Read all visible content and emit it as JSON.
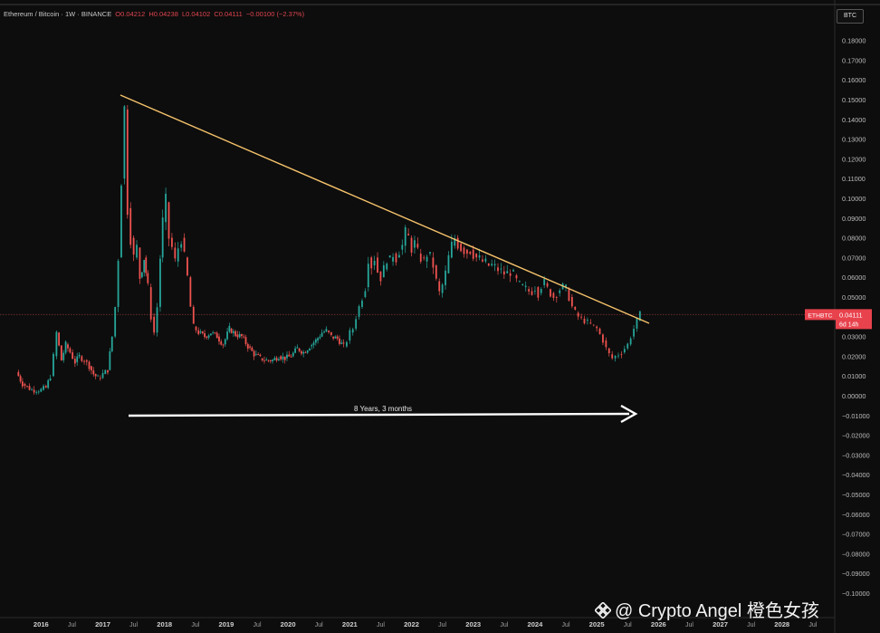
{
  "header": {
    "symbol_line": "Ethereum / Bitcoin · 1W · BINANCE",
    "o": "O0.04212",
    "h": "H0.04238",
    "l": "L0.04102",
    "c": "C0.04111",
    "change": "−0.00100 (−2.37%)"
  },
  "currency_button": "BTC",
  "price_tag": {
    "symbol": "ETHBTC",
    "price": "0.04111",
    "countdown": "6d 14h"
  },
  "annotation": "8 Years, 3 months",
  "watermark": "@ Crypto Angel 橙色女孩",
  "colors": {
    "background": "#0d0d0d",
    "up": "#26a69a",
    "down": "#ef5350",
    "trendline": "#f5c26b",
    "tag": "#e8424d"
  },
  "chart_data": {
    "type": "candlestick",
    "title": "Ethereum / Bitcoin · 1W · BINANCE",
    "y_ticks": [
      "0.18000",
      "0.17000",
      "0.16000",
      "0.15000",
      "0.14000",
      "0.13000",
      "0.12000",
      "0.11000",
      "0.10000",
      "0.09000",
      "0.08000",
      "0.07000",
      "0.06000",
      "0.05000",
      "0.04000",
      "0.03000",
      "0.02000",
      "0.01000",
      "0.00000",
      "−0.01000",
      "−0.02000",
      "−0.03000",
      "−0.04000",
      "−0.05000",
      "−0.06000",
      "−0.07000",
      "−0.08000",
      "−0.09000",
      "−0.10000"
    ],
    "x_ticks": [
      "2016",
      "Jul",
      "2017",
      "Jul",
      "2018",
      "Jul",
      "2019",
      "Jul",
      "2020",
      "Jul",
      "2021",
      "Jul",
      "2022",
      "Jul",
      "2023",
      "Jul",
      "2024",
      "Jul",
      "2025",
      "Jul",
      "2026",
      "Jul",
      "2027",
      "Jul",
      "2028",
      "Jul"
    ],
    "ylim": [
      -0.1,
      0.18
    ],
    "xlim": [
      2015.55,
      2029.2
    ],
    "last_price": 0.04111,
    "trendline": {
      "from": [
        2017.35,
        0.152
      ],
      "to": [
        2025.85,
        0.0402
      ]
    },
    "arrow": {
      "from": 2017.35,
      "to": 2025.6,
      "y": -0.005
    },
    "price_path": [
      [
        2015.6,
        0.012
      ],
      [
        2015.7,
        0.006
      ],
      [
        2015.85,
        0.003
      ],
      [
        2016.0,
        0.003
      ],
      [
        2016.08,
        0.004
      ],
      [
        2016.15,
        0.01
      ],
      [
        2016.2,
        0.02
      ],
      [
        2016.25,
        0.032
      ],
      [
        2016.33,
        0.018
      ],
      [
        2016.4,
        0.026
      ],
      [
        2016.47,
        0.022
      ],
      [
        2016.55,
        0.017
      ],
      [
        2016.62,
        0.02
      ],
      [
        2016.7,
        0.018
      ],
      [
        2016.78,
        0.015
      ],
      [
        2016.85,
        0.011
      ],
      [
        2016.92,
        0.009
      ],
      [
        2017.0,
        0.011
      ],
      [
        2017.08,
        0.013
      ],
      [
        2017.15,
        0.03
      ],
      [
        2017.2,
        0.045
      ],
      [
        2017.25,
        0.07
      ],
      [
        2017.3,
        0.11
      ],
      [
        2017.35,
        0.145
      ],
      [
        2017.4,
        0.095
      ],
      [
        2017.45,
        0.08
      ],
      [
        2017.5,
        0.07
      ],
      [
        2017.55,
        0.075
      ],
      [
        2017.6,
        0.06
      ],
      [
        2017.67,
        0.07
      ],
      [
        2017.73,
        0.055
      ],
      [
        2017.78,
        0.04
      ],
      [
        2017.83,
        0.032
      ],
      [
        2017.88,
        0.045
      ],
      [
        2017.93,
        0.07
      ],
      [
        2017.97,
        0.088
      ],
      [
        2018.02,
        0.098
      ],
      [
        2018.07,
        0.08
      ],
      [
        2018.12,
        0.075
      ],
      [
        2018.17,
        0.068
      ],
      [
        2018.22,
        0.075
      ],
      [
        2018.27,
        0.08
      ],
      [
        2018.32,
        0.07
      ],
      [
        2018.37,
        0.06
      ],
      [
        2018.42,
        0.045
      ],
      [
        2018.47,
        0.035
      ],
      [
        2018.55,
        0.032
      ],
      [
        2018.65,
        0.03
      ],
      [
        2018.75,
        0.032
      ],
      [
        2018.85,
        0.03
      ],
      [
        2018.95,
        0.026
      ],
      [
        2019.05,
        0.034
      ],
      [
        2019.15,
        0.031
      ],
      [
        2019.25,
        0.03
      ],
      [
        2019.35,
        0.025
      ],
      [
        2019.45,
        0.021
      ],
      [
        2019.55,
        0.019
      ],
      [
        2019.65,
        0.018
      ],
      [
        2019.75,
        0.018
      ],
      [
        2019.85,
        0.02
      ],
      [
        2019.95,
        0.019
      ],
      [
        2020.05,
        0.02
      ],
      [
        2020.15,
        0.024
      ],
      [
        2020.25,
        0.022
      ],
      [
        2020.35,
        0.025
      ],
      [
        2020.45,
        0.028
      ],
      [
        2020.55,
        0.032
      ],
      [
        2020.62,
        0.033
      ],
      [
        2020.7,
        0.03
      ],
      [
        2020.8,
        0.029
      ],
      [
        2020.9,
        0.025
      ],
      [
        2020.95,
        0.028
      ],
      [
        2021.0,
        0.032
      ],
      [
        2021.05,
        0.034
      ],
      [
        2021.1,
        0.04
      ],
      [
        2021.15,
        0.045
      ],
      [
        2021.2,
        0.05
      ],
      [
        2021.25,
        0.055
      ],
      [
        2021.3,
        0.07
      ],
      [
        2021.35,
        0.066
      ],
      [
        2021.4,
        0.07
      ],
      [
        2021.45,
        0.063
      ],
      [
        2021.5,
        0.06
      ],
      [
        2021.55,
        0.064
      ],
      [
        2021.6,
        0.07
      ],
      [
        2021.65,
        0.068
      ],
      [
        2021.7,
        0.072
      ],
      [
        2021.75,
        0.07
      ],
      [
        2021.8,
        0.074
      ],
      [
        2021.85,
        0.076
      ],
      [
        2021.9,
        0.082
      ],
      [
        2021.95,
        0.08
      ],
      [
        2022.0,
        0.075
      ],
      [
        2022.05,
        0.077
      ],
      [
        2022.1,
        0.072
      ],
      [
        2022.15,
        0.07
      ],
      [
        2022.2,
        0.068
      ],
      [
        2022.25,
        0.072
      ],
      [
        2022.3,
        0.07
      ],
      [
        2022.35,
        0.066
      ],
      [
        2022.4,
        0.058
      ],
      [
        2022.45,
        0.052
      ],
      [
        2022.5,
        0.056
      ],
      [
        2022.55,
        0.062
      ],
      [
        2022.6,
        0.07
      ],
      [
        2022.65,
        0.076
      ],
      [
        2022.7,
        0.08
      ],
      [
        2022.75,
        0.077
      ],
      [
        2022.8,
        0.075
      ],
      [
        2022.85,
        0.074
      ],
      [
        2022.9,
        0.073
      ],
      [
        2022.95,
        0.074
      ],
      [
        2023.0,
        0.072
      ],
      [
        2023.05,
        0.07
      ],
      [
        2023.1,
        0.069
      ],
      [
        2023.15,
        0.068
      ],
      [
        2023.2,
        0.067
      ],
      [
        2023.25,
        0.066
      ],
      [
        2023.3,
        0.066
      ],
      [
        2023.35,
        0.065
      ],
      [
        2023.4,
        0.064
      ],
      [
        2023.45,
        0.063
      ],
      [
        2023.5,
        0.062
      ],
      [
        2023.55,
        0.062
      ],
      [
        2023.6,
        0.063
      ],
      [
        2023.65,
        0.061
      ],
      [
        2023.7,
        0.058
      ],
      [
        2023.75,
        0.056
      ],
      [
        2023.8,
        0.055
      ],
      [
        2023.85,
        0.054
      ],
      [
        2023.9,
        0.053
      ],
      [
        2023.95,
        0.053
      ],
      [
        2024.0,
        0.055
      ],
      [
        2024.05,
        0.052
      ],
      [
        2024.1,
        0.056
      ],
      [
        2024.15,
        0.057
      ],
      [
        2024.2,
        0.054
      ],
      [
        2024.25,
        0.052
      ],
      [
        2024.3,
        0.05
      ],
      [
        2024.35,
        0.052
      ],
      [
        2024.4,
        0.054
      ],
      [
        2024.45,
        0.055
      ],
      [
        2024.5,
        0.054
      ],
      [
        2024.55,
        0.05
      ],
      [
        2024.6,
        0.045
      ],
      [
        2024.65,
        0.042
      ],
      [
        2024.7,
        0.04
      ],
      [
        2024.75,
        0.039
      ],
      [
        2024.8,
        0.038
      ],
      [
        2024.85,
        0.037
      ],
      [
        2024.9,
        0.036
      ],
      [
        2024.95,
        0.035
      ],
      [
        2025.0,
        0.034
      ],
      [
        2025.05,
        0.031
      ],
      [
        2025.1,
        0.028
      ],
      [
        2025.15,
        0.024
      ],
      [
        2025.2,
        0.021
      ],
      [
        2025.25,
        0.019
      ],
      [
        2025.3,
        0.02
      ],
      [
        2025.35,
        0.021
      ],
      [
        2025.4,
        0.022
      ],
      [
        2025.45,
        0.024
      ],
      [
        2025.5,
        0.026
      ],
      [
        2025.55,
        0.03
      ],
      [
        2025.6,
        0.034
      ],
      [
        2025.65,
        0.038
      ],
      [
        2025.7,
        0.041
      ]
    ]
  }
}
